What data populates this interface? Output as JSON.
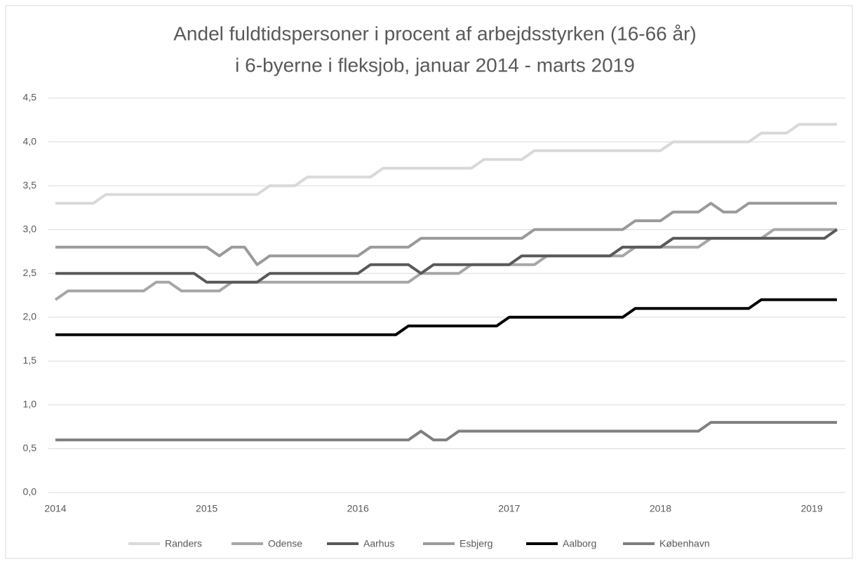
{
  "chart_data": {
    "type": "line",
    "title": "Andel fuldtidspersoner i procent af arbejdsstyrken (16-66 år)",
    "subtitle": "i 6-byerne i fleksjob, januar 2014 - marts 2019",
    "categories": [
      "2014",
      null,
      null,
      null,
      null,
      null,
      null,
      null,
      null,
      null,
      null,
      null,
      "2015",
      null,
      null,
      null,
      null,
      null,
      null,
      null,
      null,
      null,
      null,
      null,
      "2016",
      null,
      null,
      null,
      null,
      null,
      null,
      null,
      null,
      null,
      null,
      null,
      "2017",
      null,
      null,
      null,
      null,
      null,
      null,
      null,
      null,
      null,
      null,
      null,
      "2018",
      null,
      null,
      null,
      null,
      null,
      null,
      null,
      null,
      null,
      null,
      null,
      "2019",
      null,
      null
    ],
    "series": [
      {
        "name": "Randers",
        "color": "#d9d9d9",
        "values": [
          3.3,
          3.3,
          3.3,
          3.3,
          3.4,
          3.4,
          3.4,
          3.4,
          3.4,
          3.4,
          3.4,
          3.4,
          3.4,
          3.4,
          3.4,
          3.4,
          3.4,
          3.5,
          3.5,
          3.5,
          3.6,
          3.6,
          3.6,
          3.6,
          3.6,
          3.6,
          3.7,
          3.7,
          3.7,
          3.7,
          3.7,
          3.7,
          3.7,
          3.7,
          3.8,
          3.8,
          3.8,
          3.8,
          3.9,
          3.9,
          3.9,
          3.9,
          3.9,
          3.9,
          3.9,
          3.9,
          3.9,
          3.9,
          3.9,
          4.0,
          4.0,
          4.0,
          4.0,
          4.0,
          4.0,
          4.0,
          4.1,
          4.1,
          4.1,
          4.2,
          4.2,
          4.2,
          4.2
        ]
      },
      {
        "name": "Odense",
        "color": "#a6a6a6",
        "values": [
          2.2,
          2.3,
          2.3,
          2.3,
          2.3,
          2.3,
          2.3,
          2.3,
          2.4,
          2.4,
          2.3,
          2.3,
          2.3,
          2.3,
          2.4,
          2.4,
          2.4,
          2.4,
          2.4,
          2.4,
          2.4,
          2.4,
          2.4,
          2.4,
          2.4,
          2.4,
          2.4,
          2.4,
          2.4,
          2.5,
          2.5,
          2.5,
          2.5,
          2.6,
          2.6,
          2.6,
          2.6,
          2.6,
          2.6,
          2.7,
          2.7,
          2.7,
          2.7,
          2.7,
          2.7,
          2.7,
          2.8,
          2.8,
          2.8,
          2.8,
          2.8,
          2.8,
          2.9,
          2.9,
          2.9,
          2.9,
          2.9,
          3.0,
          3.0,
          3.0,
          3.0,
          3.0,
          3.0
        ]
      },
      {
        "name": "Aarhus",
        "color": "#595959",
        "values": [
          2.5,
          2.5,
          2.5,
          2.5,
          2.5,
          2.5,
          2.5,
          2.5,
          2.5,
          2.5,
          2.5,
          2.5,
          2.4,
          2.4,
          2.4,
          2.4,
          2.4,
          2.5,
          2.5,
          2.5,
          2.5,
          2.5,
          2.5,
          2.5,
          2.5,
          2.6,
          2.6,
          2.6,
          2.6,
          2.5,
          2.6,
          2.6,
          2.6,
          2.6,
          2.6,
          2.6,
          2.6,
          2.7,
          2.7,
          2.7,
          2.7,
          2.7,
          2.7,
          2.7,
          2.7,
          2.8,
          2.8,
          2.8,
          2.8,
          2.9,
          2.9,
          2.9,
          2.9,
          2.9,
          2.9,
          2.9,
          2.9,
          2.9,
          2.9,
          2.9,
          2.9,
          2.9,
          3.0
        ]
      },
      {
        "name": "Esbjerg",
        "color": "#9a9a9a",
        "values": [
          2.8,
          2.8,
          2.8,
          2.8,
          2.8,
          2.8,
          2.8,
          2.8,
          2.8,
          2.8,
          2.8,
          2.8,
          2.8,
          2.7,
          2.8,
          2.8,
          2.6,
          2.7,
          2.7,
          2.7,
          2.7,
          2.7,
          2.7,
          2.7,
          2.7,
          2.8,
          2.8,
          2.8,
          2.8,
          2.9,
          2.9,
          2.9,
          2.9,
          2.9,
          2.9,
          2.9,
          2.9,
          2.9,
          3.0,
          3.0,
          3.0,
          3.0,
          3.0,
          3.0,
          3.0,
          3.0,
          3.1,
          3.1,
          3.1,
          3.2,
          3.2,
          3.2,
          3.3,
          3.2,
          3.2,
          3.3,
          3.3,
          3.3,
          3.3,
          3.3,
          3.3,
          3.3,
          3.3
        ]
      },
      {
        "name": "Aalborg",
        "color": "#000000",
        "values": [
          1.8,
          1.8,
          1.8,
          1.8,
          1.8,
          1.8,
          1.8,
          1.8,
          1.8,
          1.8,
          1.8,
          1.8,
          1.8,
          1.8,
          1.8,
          1.8,
          1.8,
          1.8,
          1.8,
          1.8,
          1.8,
          1.8,
          1.8,
          1.8,
          1.8,
          1.8,
          1.8,
          1.8,
          1.9,
          1.9,
          1.9,
          1.9,
          1.9,
          1.9,
          1.9,
          1.9,
          2.0,
          2.0,
          2.0,
          2.0,
          2.0,
          2.0,
          2.0,
          2.0,
          2.0,
          2.0,
          2.1,
          2.1,
          2.1,
          2.1,
          2.1,
          2.1,
          2.1,
          2.1,
          2.1,
          2.1,
          2.2,
          2.2,
          2.2,
          2.2,
          2.2,
          2.2,
          2.2
        ]
      },
      {
        "name": "København",
        "color": "#7f7f7f",
        "values": [
          0.6,
          0.6,
          0.6,
          0.6,
          0.6,
          0.6,
          0.6,
          0.6,
          0.6,
          0.6,
          0.6,
          0.6,
          0.6,
          0.6,
          0.6,
          0.6,
          0.6,
          0.6,
          0.6,
          0.6,
          0.6,
          0.6,
          0.6,
          0.6,
          0.6,
          0.6,
          0.6,
          0.6,
          0.6,
          0.7,
          0.6,
          0.6,
          0.7,
          0.7,
          0.7,
          0.7,
          0.7,
          0.7,
          0.7,
          0.7,
          0.7,
          0.7,
          0.7,
          0.7,
          0.7,
          0.7,
          0.7,
          0.7,
          0.7,
          0.7,
          0.7,
          0.7,
          0.8,
          0.8,
          0.8,
          0.8,
          0.8,
          0.8,
          0.8,
          0.8,
          0.8,
          0.8,
          0.8
        ]
      }
    ],
    "ylim": [
      0,
      4.5
    ],
    "yticks": [
      {
        "value": 0,
        "label": "0,0"
      },
      {
        "value": 0.5,
        "label": "0,5"
      },
      {
        "value": 1,
        "label": "1,0"
      },
      {
        "value": 1.5,
        "label": "1,5"
      },
      {
        "value": 2,
        "label": "2,0"
      },
      {
        "value": 2.5,
        "label": "2,5"
      },
      {
        "value": 3,
        "label": "3,0"
      },
      {
        "value": 3.5,
        "label": "3,5"
      },
      {
        "value": 4,
        "label": "4,0"
      },
      {
        "value": 4.5,
        "label": "4,5"
      }
    ],
    "grid": true,
    "legend": "bottom"
  }
}
